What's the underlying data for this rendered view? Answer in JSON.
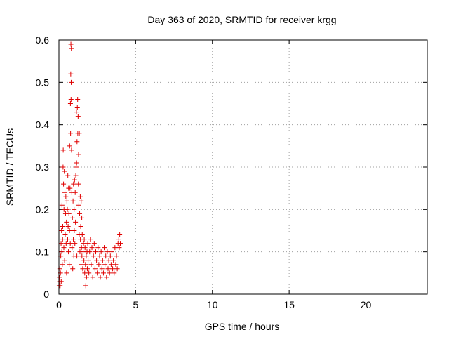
{
  "chart_data": {
    "type": "scatter",
    "title": "Day 363 of 2020, SRMTID for receiver krgg",
    "xlabel": "GPS time / hours",
    "ylabel": "SRMTID / TECUs",
    "xlim": [
      0,
      24
    ],
    "ylim": [
      0,
      0.6
    ],
    "xticks": [
      0,
      5,
      10,
      15,
      20
    ],
    "yticks": [
      0,
      0.1,
      0.2,
      0.3,
      0.4,
      0.5,
      0.6
    ],
    "x_tick_labels": [
      "0",
      "5",
      "10",
      "15",
      "20"
    ],
    "y_tick_labels": [
      "0",
      "0.1",
      "0.2",
      "0.3",
      "0.4",
      "0.5",
      "0.6"
    ],
    "grid": true,
    "marker": "plus",
    "color": "#e00000",
    "series": [
      {
        "name": "krgg",
        "points": [
          [
            0.02,
            0.02
          ],
          [
            0.03,
            0.04
          ],
          [
            0.05,
            0.03
          ],
          [
            0.06,
            0.06
          ],
          [
            0.08,
            0.02
          ],
          [
            0.1,
            0.05
          ],
          [
            0.12,
            0.09
          ],
          [
            0.14,
            0.12
          ],
          [
            0.15,
            0.03
          ],
          [
            0.17,
            0.15
          ],
          [
            0.19,
            0.1
          ],
          [
            0.2,
            0.21
          ],
          [
            0.22,
            0.07
          ],
          [
            0.24,
            0.13
          ],
          [
            0.25,
            0.16
          ],
          [
            0.27,
            0.3
          ],
          [
            0.28,
            0.34
          ],
          [
            0.3,
            0.26
          ],
          [
            0.32,
            0.11
          ],
          [
            0.33,
            0.2
          ],
          [
            0.35,
            0.29
          ],
          [
            0.37,
            0.08
          ],
          [
            0.39,
            0.24
          ],
          [
            0.41,
            0.14
          ],
          [
            0.43,
            0.19
          ],
          [
            0.45,
            0.23
          ],
          [
            0.47,
            0.12
          ],
          [
            0.49,
            0.17
          ],
          [
            0.5,
            0.05
          ],
          [
            0.52,
            0.22
          ],
          [
            0.55,
            0.2
          ],
          [
            0.57,
            0.13
          ],
          [
            0.58,
            0.28
          ],
          [
            0.6,
            0.16
          ],
          [
            0.62,
            0.1
          ],
          [
            0.63,
            0.25
          ],
          [
            0.65,
            0.19
          ],
          [
            0.67,
            0.07
          ],
          [
            0.69,
            0.15
          ],
          [
            0.7,
            0.35
          ],
          [
            0.72,
            0.25
          ],
          [
            0.74,
            0.12
          ],
          [
            0.75,
            0.45
          ],
          [
            0.76,
            0.38
          ],
          [
            0.77,
            0.52
          ],
          [
            0.78,
            0.59
          ],
          [
            0.79,
            0.46
          ],
          [
            0.8,
            0.5
          ],
          [
            0.81,
            0.58
          ],
          [
            0.82,
            0.34
          ],
          [
            0.84,
            0.24
          ],
          [
            0.86,
            0.11
          ],
          [
            0.88,
            0.18
          ],
          [
            0.9,
            0.06
          ],
          [
            0.92,
            0.22
          ],
          [
            0.94,
            0.13
          ],
          [
            0.95,
            0.26
          ],
          [
            0.97,
            0.09
          ],
          [
            0.99,
            0.2
          ],
          [
            1.0,
            0.15
          ],
          [
            1.02,
            0.27
          ],
          [
            1.04,
            0.12
          ],
          [
            1.06,
            0.24
          ],
          [
            1.08,
            0.17
          ],
          [
            1.1,
            0.28
          ],
          [
            1.12,
            0.3
          ],
          [
            1.14,
            0.43
          ],
          [
            1.15,
            0.31
          ],
          [
            1.17,
            0.09
          ],
          [
            1.18,
            0.36
          ],
          [
            1.2,
            0.44
          ],
          [
            1.22,
            0.46
          ],
          [
            1.23,
            0.38
          ],
          [
            1.25,
            0.42
          ],
          [
            1.27,
            0.26
          ],
          [
            1.28,
            0.33
          ],
          [
            1.3,
            0.21
          ],
          [
            1.32,
            0.14
          ],
          [
            1.33,
            0.38
          ],
          [
            1.35,
            0.19
          ],
          [
            1.37,
            0.1
          ],
          [
            1.39,
            0.23
          ],
          [
            1.4,
            0.13
          ],
          [
            1.42,
            0.16
          ],
          [
            1.44,
            0.07
          ],
          [
            1.45,
            0.22
          ],
          [
            1.47,
            0.11
          ],
          [
            1.49,
            0.18
          ],
          [
            1.5,
            0.09
          ],
          [
            1.52,
            0.14
          ],
          [
            1.55,
            0.06
          ],
          [
            1.58,
            0.1
          ],
          [
            1.6,
            0.12
          ],
          [
            1.63,
            0.08
          ],
          [
            1.65,
            0.13
          ],
          [
            1.68,
            0.05
          ],
          [
            1.7,
            0.11
          ],
          [
            1.73,
            0.07
          ],
          [
            1.75,
            0.02
          ],
          [
            1.78,
            0.09
          ],
          [
            1.8,
            0.04
          ],
          [
            1.83,
            0.1
          ],
          [
            1.85,
            0.06
          ],
          [
            1.88,
            0.12
          ],
          [
            1.9,
            0.08
          ],
          [
            1.95,
            0.05
          ],
          [
            2.0,
            0.1
          ],
          [
            2.05,
            0.13
          ],
          [
            2.1,
            0.07
          ],
          [
            2.15,
            0.11
          ],
          [
            2.2,
            0.04
          ],
          [
            2.25,
            0.09
          ],
          [
            2.3,
            0.12
          ],
          [
            2.35,
            0.06
          ],
          [
            2.4,
            0.1
          ],
          [
            2.45,
            0.08
          ],
          [
            2.5,
            0.05
          ],
          [
            2.55,
            0.11
          ],
          [
            2.6,
            0.07
          ],
          [
            2.65,
            0.09
          ],
          [
            2.7,
            0.04
          ],
          [
            2.75,
            0.1
          ],
          [
            2.8,
            0.06
          ],
          [
            2.85,
            0.08
          ],
          [
            2.9,
            0.05
          ],
          [
            2.95,
            0.11
          ],
          [
            3.0,
            0.07
          ],
          [
            3.05,
            0.09
          ],
          [
            3.1,
            0.04
          ],
          [
            3.15,
            0.1
          ],
          [
            3.2,
            0.06
          ],
          [
            3.25,
            0.08
          ],
          [
            3.3,
            0.05
          ],
          [
            3.35,
            0.09
          ],
          [
            3.4,
            0.07
          ],
          [
            3.45,
            0.1
          ],
          [
            3.5,
            0.06
          ],
          [
            3.55,
            0.08
          ],
          [
            3.6,
            0.05
          ],
          [
            3.65,
            0.11
          ],
          [
            3.7,
            0.07
          ],
          [
            3.75,
            0.09
          ],
          [
            3.8,
            0.06
          ],
          [
            3.85,
            0.12
          ],
          [
            3.9,
            0.13
          ],
          [
            3.93,
            0.11
          ],
          [
            3.96,
            0.14
          ],
          [
            4.0,
            0.12
          ]
        ]
      }
    ]
  }
}
